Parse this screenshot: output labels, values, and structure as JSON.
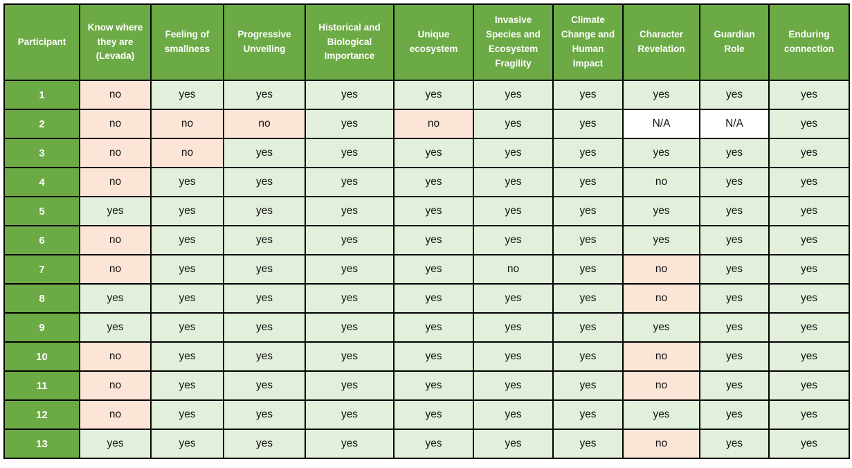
{
  "colors": {
    "header_green": "#6caa45",
    "cell_green": "#e2efda",
    "cell_pink": "#fce4d6",
    "cell_white": "#ffffff",
    "border_black": "#000000",
    "header_text": "#ffffff",
    "cell_text": "#131313"
  },
  "chart_data": {
    "type": "table",
    "title": "Participant theme consensus table",
    "columns": [
      "Participant",
      "Know where they are (Levada)",
      "Feeling of smallness",
      "Progressive Unveiling",
      "Historical and Biological Importance",
      "Unique ecosystem",
      "Invasive Species and Ecosystem Fragility",
      "Climate Change and Human Impact",
      "Character Revelation",
      "Guardian Role",
      "Enduring connection"
    ],
    "cell_color_legend": {
      "g": "light-green",
      "p": "light-pink",
      "w": "white"
    },
    "rows": [
      {
        "participant": "1",
        "cells": [
          {
            "v": "no",
            "c": "p"
          },
          {
            "v": "yes",
            "c": "g"
          },
          {
            "v": "yes",
            "c": "g"
          },
          {
            "v": "yes",
            "c": "g"
          },
          {
            "v": "yes",
            "c": "g"
          },
          {
            "v": "yes",
            "c": "g"
          },
          {
            "v": "yes",
            "c": "g"
          },
          {
            "v": "yes",
            "c": "g"
          },
          {
            "v": "yes",
            "c": "g"
          },
          {
            "v": "yes",
            "c": "g"
          }
        ]
      },
      {
        "participant": "2",
        "cells": [
          {
            "v": "no",
            "c": "p"
          },
          {
            "v": "no",
            "c": "p"
          },
          {
            "v": "no",
            "c": "p"
          },
          {
            "v": "yes",
            "c": "g"
          },
          {
            "v": "no",
            "c": "p"
          },
          {
            "v": "yes",
            "c": "g"
          },
          {
            "v": "yes",
            "c": "g"
          },
          {
            "v": "N/A",
            "c": "w"
          },
          {
            "v": "N/A",
            "c": "w"
          },
          {
            "v": "yes",
            "c": "g"
          }
        ]
      },
      {
        "participant": "3",
        "cells": [
          {
            "v": "no",
            "c": "p"
          },
          {
            "v": "no",
            "c": "p"
          },
          {
            "v": "yes",
            "c": "g"
          },
          {
            "v": "yes",
            "c": "g"
          },
          {
            "v": "yes",
            "c": "g"
          },
          {
            "v": "yes",
            "c": "g"
          },
          {
            "v": "yes",
            "c": "g"
          },
          {
            "v": "yes",
            "c": "g"
          },
          {
            "v": "yes",
            "c": "g"
          },
          {
            "v": "yes",
            "c": "g"
          }
        ]
      },
      {
        "participant": "4",
        "cells": [
          {
            "v": "no",
            "c": "p"
          },
          {
            "v": "yes",
            "c": "g"
          },
          {
            "v": "yes",
            "c": "g"
          },
          {
            "v": "yes",
            "c": "g"
          },
          {
            "v": "yes",
            "c": "g"
          },
          {
            "v": "yes",
            "c": "g"
          },
          {
            "v": "yes",
            "c": "g"
          },
          {
            "v": "no",
            "c": "g"
          },
          {
            "v": "yes",
            "c": "g"
          },
          {
            "v": "yes",
            "c": "g"
          }
        ]
      },
      {
        "participant": "5",
        "cells": [
          {
            "v": "yes",
            "c": "g"
          },
          {
            "v": "yes",
            "c": "g"
          },
          {
            "v": "yes",
            "c": "g"
          },
          {
            "v": "yes",
            "c": "g"
          },
          {
            "v": "yes",
            "c": "g"
          },
          {
            "v": "yes",
            "c": "g"
          },
          {
            "v": "yes",
            "c": "g"
          },
          {
            "v": "yes",
            "c": "g"
          },
          {
            "v": "yes",
            "c": "g"
          },
          {
            "v": "yes",
            "c": "g"
          }
        ]
      },
      {
        "participant": "6",
        "cells": [
          {
            "v": "no",
            "c": "p"
          },
          {
            "v": "yes",
            "c": "g"
          },
          {
            "v": "yes",
            "c": "g"
          },
          {
            "v": "yes",
            "c": "g"
          },
          {
            "v": "yes",
            "c": "g"
          },
          {
            "v": "yes",
            "c": "g"
          },
          {
            "v": "yes",
            "c": "g"
          },
          {
            "v": "yes",
            "c": "g"
          },
          {
            "v": "yes",
            "c": "g"
          },
          {
            "v": "yes",
            "c": "g"
          }
        ]
      },
      {
        "participant": "7",
        "cells": [
          {
            "v": "no",
            "c": "p"
          },
          {
            "v": "yes",
            "c": "g"
          },
          {
            "v": "yes",
            "c": "g"
          },
          {
            "v": "yes",
            "c": "g"
          },
          {
            "v": "yes",
            "c": "g"
          },
          {
            "v": "no",
            "c": "g"
          },
          {
            "v": "yes",
            "c": "g"
          },
          {
            "v": "no",
            "c": "p"
          },
          {
            "v": "yes",
            "c": "g"
          },
          {
            "v": "yes",
            "c": "g"
          }
        ]
      },
      {
        "participant": "8",
        "cells": [
          {
            "v": "yes",
            "c": "g"
          },
          {
            "v": "yes",
            "c": "g"
          },
          {
            "v": "yes",
            "c": "g"
          },
          {
            "v": "yes",
            "c": "g"
          },
          {
            "v": "yes",
            "c": "g"
          },
          {
            "v": "yes",
            "c": "g"
          },
          {
            "v": "yes",
            "c": "g"
          },
          {
            "v": "no",
            "c": "p"
          },
          {
            "v": "yes",
            "c": "g"
          },
          {
            "v": "yes",
            "c": "g"
          }
        ]
      },
      {
        "participant": "9",
        "cells": [
          {
            "v": "yes",
            "c": "g"
          },
          {
            "v": "yes",
            "c": "g"
          },
          {
            "v": "yes",
            "c": "g"
          },
          {
            "v": "yes",
            "c": "g"
          },
          {
            "v": "yes",
            "c": "g"
          },
          {
            "v": "yes",
            "c": "g"
          },
          {
            "v": "yes",
            "c": "g"
          },
          {
            "v": "yes",
            "c": "g"
          },
          {
            "v": "yes",
            "c": "g"
          },
          {
            "v": "yes",
            "c": "g"
          }
        ]
      },
      {
        "participant": "10",
        "cells": [
          {
            "v": "no",
            "c": "p"
          },
          {
            "v": "yes",
            "c": "g"
          },
          {
            "v": "yes",
            "c": "g"
          },
          {
            "v": "yes",
            "c": "g"
          },
          {
            "v": "yes",
            "c": "g"
          },
          {
            "v": "yes",
            "c": "g"
          },
          {
            "v": "yes",
            "c": "g"
          },
          {
            "v": "no",
            "c": "p"
          },
          {
            "v": "yes",
            "c": "g"
          },
          {
            "v": "yes",
            "c": "g"
          }
        ]
      },
      {
        "participant": "11",
        "cells": [
          {
            "v": "no",
            "c": "p"
          },
          {
            "v": "yes",
            "c": "g"
          },
          {
            "v": "yes",
            "c": "g"
          },
          {
            "v": "yes",
            "c": "g"
          },
          {
            "v": "yes",
            "c": "g"
          },
          {
            "v": "yes",
            "c": "g"
          },
          {
            "v": "yes",
            "c": "g"
          },
          {
            "v": "no",
            "c": "p"
          },
          {
            "v": "yes",
            "c": "g"
          },
          {
            "v": "yes",
            "c": "g"
          }
        ]
      },
      {
        "participant": "12",
        "cells": [
          {
            "v": "no",
            "c": "p"
          },
          {
            "v": "yes",
            "c": "g"
          },
          {
            "v": "yes",
            "c": "g"
          },
          {
            "v": "yes",
            "c": "g"
          },
          {
            "v": "yes",
            "c": "g"
          },
          {
            "v": "yes",
            "c": "g"
          },
          {
            "v": "yes",
            "c": "g"
          },
          {
            "v": "yes",
            "c": "g"
          },
          {
            "v": "yes",
            "c": "g"
          },
          {
            "v": "yes",
            "c": "g"
          }
        ]
      },
      {
        "participant": "13",
        "cells": [
          {
            "v": "yes",
            "c": "g"
          },
          {
            "v": "yes",
            "c": "g"
          },
          {
            "v": "yes",
            "c": "g"
          },
          {
            "v": "yes",
            "c": "g"
          },
          {
            "v": "yes",
            "c": "g"
          },
          {
            "v": "yes",
            "c": "g"
          },
          {
            "v": "yes",
            "c": "g"
          },
          {
            "v": "no",
            "c": "p"
          },
          {
            "v": "yes",
            "c": "g"
          },
          {
            "v": "yes",
            "c": "g"
          }
        ]
      }
    ]
  }
}
